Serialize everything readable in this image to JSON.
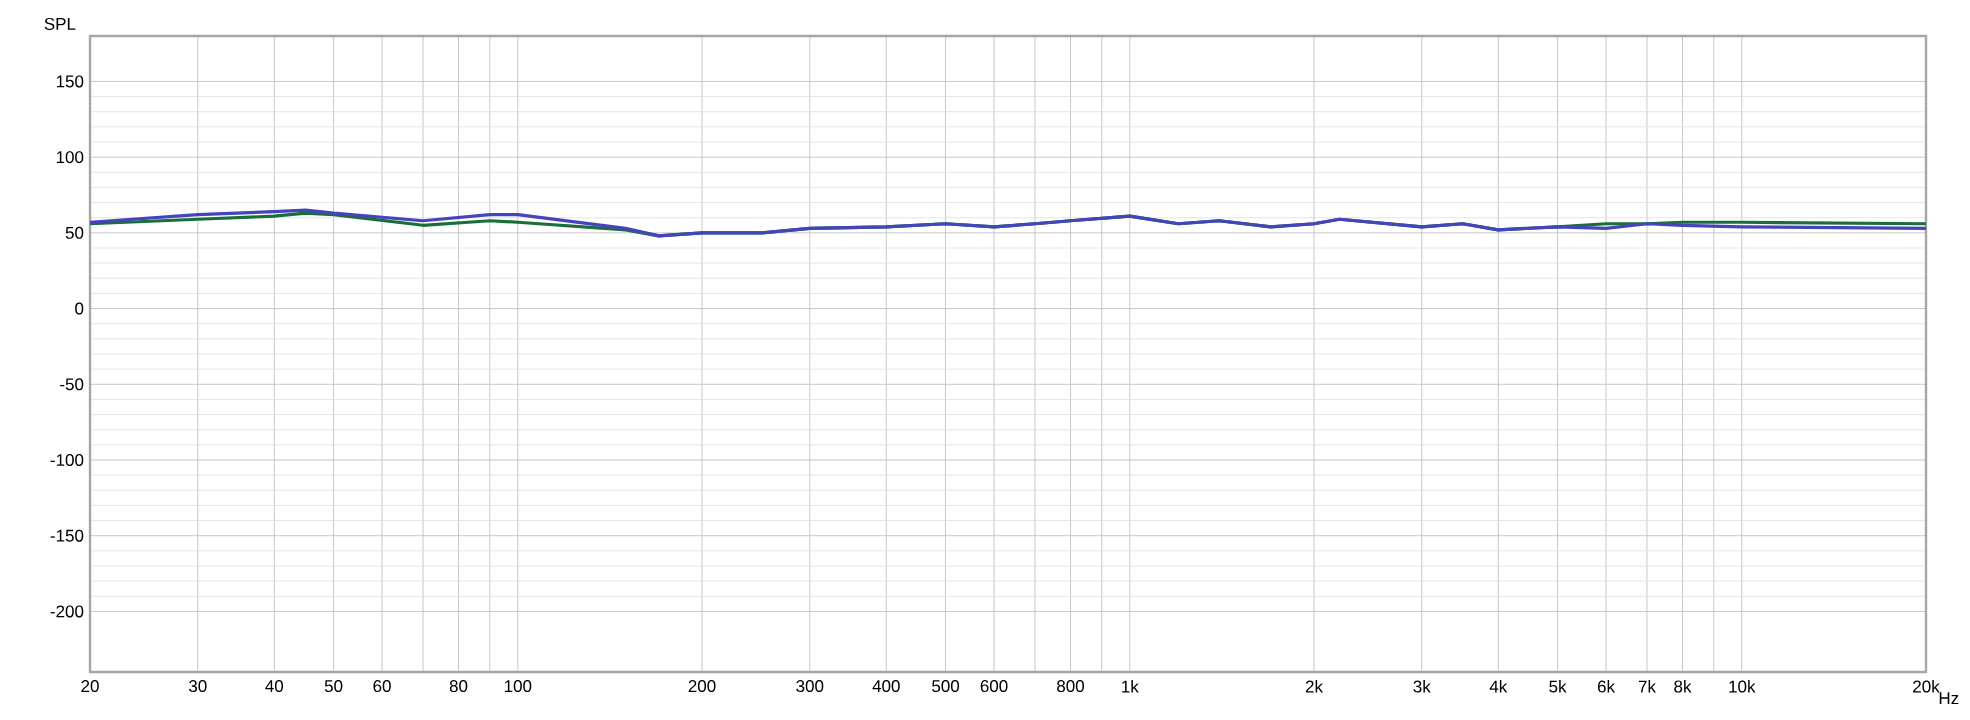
{
  "chart_data": {
    "type": "line",
    "ylabel": "SPL",
    "log": "x",
    "xlabel": "Hz",
    "grid": true,
    "line_style": "solid",
    "marker": "none",
    "xlim": [
      20,
      20000
    ],
    "ylim": [
      -240,
      180
    ],
    "yticks": [
      -200,
      -150,
      -100,
      -50,
      0,
      50,
      100,
      150
    ],
    "xticks": [
      20,
      30,
      40,
      50,
      60,
      {
        "value": 70,
        "label": null
      },
      80,
      {
        "value": 90,
        "label": null
      },
      100,
      200,
      300,
      400,
      500,
      600,
      {
        "value": 700,
        "label": null
      },
      800,
      {
        "value": 900,
        "label": null
      },
      {
        "value": 1000,
        "label": "1k"
      },
      {
        "value": 2000,
        "label": "2k"
      },
      {
        "value": 3000,
        "label": "3k"
      },
      {
        "value": 4000,
        "label": "4k"
      },
      {
        "value": 5000,
        "label": "5k"
      },
      {
        "value": 6000,
        "label": "6k"
      },
      {
        "value": 7000,
        "label": "7k"
      },
      {
        "value": 8000,
        "label": "8k"
      },
      {
        "value": 9000,
        "label": null
      },
      {
        "value": 10000,
        "label": "10k"
      },
      {
        "value": 20000,
        "label": "20k"
      }
    ],
    "series": [
      {
        "color": "#1a6e3a",
        "x": [
          20,
          30,
          40,
          45,
          50,
          70,
          90,
          100,
          150,
          170,
          200,
          250,
          300,
          400,
          500,
          600,
          700,
          800,
          1000,
          1200,
          1400,
          1700,
          2000,
          2200,
          3000,
          3500,
          4000,
          5000,
          6000,
          7000,
          8000,
          10000,
          20000
        ],
        "values": [
          56,
          59,
          61,
          63,
          62,
          55,
          58,
          57,
          52,
          48,
          50,
          50,
          53,
          54,
          56,
          54,
          56,
          58,
          61,
          56,
          58,
          54,
          56,
          59,
          54,
          56,
          52,
          54,
          56,
          56,
          57,
          57,
          56
        ]
      },
      {
        "color": "#4444bb",
        "x": [
          20,
          30,
          40,
          45,
          50,
          70,
          90,
          100,
          150,
          170,
          200,
          250,
          300,
          400,
          500,
          600,
          700,
          800,
          1000,
          1200,
          1400,
          1700,
          2000,
          2200,
          3000,
          3500,
          4000,
          5000,
          6000,
          7000,
          8000,
          10000,
          20000
        ],
        "values": [
          57,
          62,
          64,
          65,
          63,
          58,
          62,
          62,
          53,
          48,
          50,
          50,
          53,
          54,
          56,
          54,
          56,
          58,
          61,
          56,
          58,
          54,
          56,
          59,
          54,
          56,
          52,
          54,
          53,
          56,
          55,
          54,
          53
        ]
      }
    ]
  }
}
